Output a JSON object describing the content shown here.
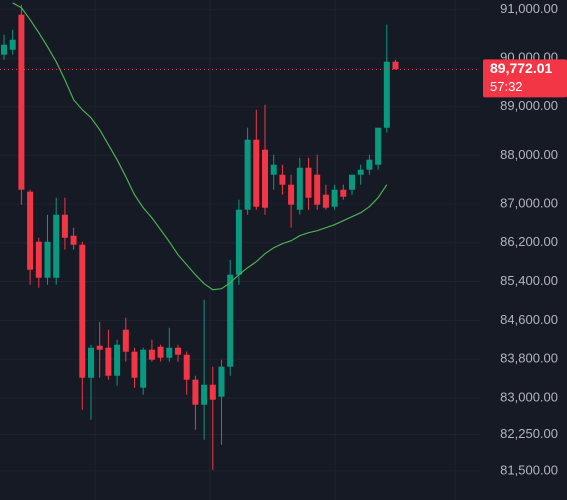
{
  "chart_data": {
    "type": "candlestick",
    "ylim": [
      80900,
      91200
    ],
    "yticks": [
      {
        "value": 91000,
        "label": "91,000.00"
      },
      {
        "value": 90000,
        "label": "90,000.00"
      },
      {
        "value": 89000,
        "label": "89,000.00"
      },
      {
        "value": 88000,
        "label": "88,000.00"
      },
      {
        "value": 87000,
        "label": "87,000.00"
      },
      {
        "value": 86200,
        "label": "86,200.00"
      },
      {
        "value": 85400,
        "label": "85,400.00"
      },
      {
        "value": 84600,
        "label": "84,600.00"
      },
      {
        "value": 83800,
        "label": "83,800.00"
      },
      {
        "value": 83000,
        "label": "83,000.00"
      },
      {
        "value": 82250,
        "label": "82,250.00"
      },
      {
        "value": 81500,
        "label": "81,500.00"
      }
    ],
    "grid": true,
    "up_color": "#089981",
    "down_color": "#f23645",
    "ma_color": "#4caf50",
    "open": [
      90073,
      90176,
      90897,
      87251,
      86221,
      85479,
      85479,
      86777,
      86344,
      86159,
      83419,
      84078,
      84037,
      83460,
      84408,
      83955,
      83213,
      83996,
      84058,
      83831,
      84037,
      83893,
      83378,
      82863,
      83275,
      83028,
      83646,
      85541,
      86880,
      88322,
      88116,
      87601,
      87601,
      87395,
      86880,
      87745,
      87601,
      87189,
      86942,
      87292,
      87292,
      87601,
      87704,
      87807,
      88569,
      89929
    ],
    "high": [
      90485,
      90588,
      91103,
      87292,
      86303,
      86777,
      87127,
      87127,
      86509,
      86221,
      84099,
      84573,
      84408,
      84202,
      84655,
      84037,
      84037,
      84202,
      84099,
      84449,
      84099,
      83955,
      83460,
      85026,
      83646,
      83790,
      85850,
      87086,
      88569,
      88940,
      89043,
      88013,
      87807,
      87601,
      87951,
      87951,
      88013,
      87395,
      87395,
      87395,
      87601,
      87807,
      88013,
      88569,
      90691,
      89970
    ],
    "low": [
      89970,
      90073,
      86983,
      85335,
      85273,
      85335,
      85335,
      86056,
      86056,
      82760,
      82554,
      83419,
      83378,
      83254,
      83749,
      83213,
      83069,
      83749,
      83749,
      83749,
      83749,
      83069,
      82348,
      82142,
      81524,
      82039,
      83460,
      85335,
      86777,
      86880,
      86777,
      87292,
      87189,
      86509,
      86777,
      86880,
      86880,
      86880,
      86880,
      87086,
      87189,
      87395,
      87601,
      87704,
      88466,
      89772
    ],
    "close": [
      90279,
      90382,
      87292,
      85644,
      85479,
      86221,
      86777,
      86303,
      86159,
      83419,
      84037,
      83996,
      83460,
      84099,
      83955,
      83419,
      83996,
      83790,
      83831,
      84037,
      83893,
      83378,
      82863,
      83275,
      82966,
      83646,
      85541,
      86880,
      88322,
      86942,
      86921,
      87807,
      87395,
      86983,
      87745,
      87127,
      86983,
      86921,
      87292,
      87148,
      87601,
      87704,
      87910,
      88569,
      89929,
      89772
    ],
    "ma": [
      null,
      91140,
      91041,
      90794,
      90526,
      90238,
      89929,
      89558,
      89146,
      88940,
      88775,
      88528,
      88219,
      87910,
      87560,
      87189,
      86921,
      86715,
      86468,
      86221,
      85953,
      85747,
      85541,
      85356,
      85232,
      85253,
      85376,
      85541,
      85685,
      85809,
      85974,
      86097,
      86180,
      86241,
      86344,
      86406,
      86447,
      86509,
      86571,
      86653,
      86736,
      86818,
      86942,
      87127,
      87395,
      null
    ],
    "last_price": {
      "value": 89772.01,
      "label": "89,772.01"
    },
    "countdown": "57:32"
  }
}
